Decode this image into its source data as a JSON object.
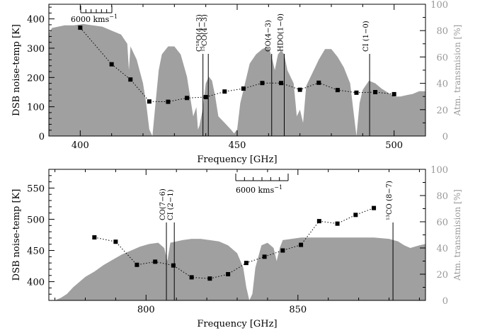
{
  "colors": {
    "transmission_fill": "#a0a0a0",
    "noise_series": "#000000",
    "right_axis": "#999999"
  },
  "chart_data": [
    {
      "type": "line",
      "xlabel": "Frequency [GHz]",
      "ylabel": "DSB noise-temp [K]",
      "y2label": "Atm. transmision [%]",
      "xlim": [
        390,
        510
      ],
      "ylim": [
        0,
        450
      ],
      "y2lim": [
        0,
        100
      ],
      "xticks": [
        "400",
        "450",
        "500"
      ],
      "yticks": [
        "0",
        "100",
        "200",
        "300",
        "400"
      ],
      "y2ticks": [
        "0",
        "20",
        "40",
        "60",
        "80",
        "100"
      ],
      "scale_bar_label": "6000 kms",
      "scale_bar_exponent": "−1",
      "series": [
        {
          "style": "dotted-line-square-markers",
          "x": [
            400,
            410,
            416,
            422,
            428,
            434,
            440,
            446,
            452,
            458,
            464,
            470,
            476,
            482,
            488,
            494,
            500
          ],
          "y": [
            370,
            245,
            193,
            118,
            117,
            130,
            133,
            152,
            162,
            181,
            181,
            158,
            182,
            157,
            148,
            150,
            143
          ]
        }
      ],
      "transmission": {
        "x": [
          390,
          391,
          393,
          395,
          398,
          401,
          404,
          407,
          410,
          413,
          415,
          415.5,
          416,
          418,
          420,
          421,
          422,
          423,
          424,
          425,
          426,
          428,
          430,
          432,
          434,
          436,
          437,
          437.5,
          438,
          439,
          440,
          441,
          442,
          443,
          444,
          446,
          448,
          449,
          450,
          451,
          452,
          454,
          456,
          458,
          460,
          461,
          462,
          463,
          464,
          465,
          466,
          468,
          469,
          470,
          471,
          472,
          474,
          476,
          478,
          480,
          482,
          484,
          486,
          487,
          488,
          489,
          490,
          492,
          494,
          496,
          498,
          500,
          502,
          504,
          506,
          508,
          510
        ],
        "y": [
          78,
          82,
          83,
          84,
          84,
          85,
          84,
          83,
          80,
          77,
          70,
          50,
          68,
          58,
          40,
          25,
          5,
          0,
          25,
          50,
          62,
          68,
          68,
          62,
          45,
          15,
          22,
          5,
          8,
          20,
          40,
          45,
          42,
          30,
          15,
          10,
          5,
          2,
          5,
          25,
          35,
          55,
          62,
          66,
          68,
          60,
          50,
          62,
          65,
          62,
          50,
          40,
          15,
          20,
          10,
          38,
          48,
          58,
          66,
          66,
          60,
          52,
          40,
          20,
          0,
          25,
          35,
          42,
          40,
          36,
          33,
          30,
          30,
          31,
          32,
          34,
          34
        ]
      },
      "lines": [
        {
          "freq": 439.1,
          "label": "C¹⁸O(4−3)"
        },
        {
          "freq": 440.8,
          "label": "¹³CO(4−3)"
        },
        {
          "freq": 461.0,
          "label": "CO(4−3)"
        },
        {
          "freq": 465.0,
          "label": "HDO(1−0)"
        },
        {
          "freq": 492.2,
          "label": "CI (1−0)"
        }
      ]
    },
    {
      "type": "line",
      "xlabel": "Frequency [GHz]",
      "ylabel": "DSB noise-temp [K]",
      "y2label": "Atm. transmision [%]",
      "xlim": [
        768,
        892
      ],
      "ylim": [
        370,
        580
      ],
      "y2lim": [
        0,
        100
      ],
      "xticks": [
        "800",
        "850"
      ],
      "yticks": [
        "400",
        "450",
        "500",
        "550"
      ],
      "y2ticks": [
        "0",
        "20",
        "40",
        "60",
        "80",
        "100"
      ],
      "scale_bar_label": "6000 kms",
      "scale_bar_exponent": "−1",
      "series": [
        {
          "style": "dotted-line-square-markers",
          "x": [
            783,
            790,
            797,
            803,
            809,
            815,
            821,
            827,
            833,
            839,
            845,
            851,
            857,
            863,
            869,
            875
          ],
          "y": [
            471,
            464,
            427,
            432,
            426,
            407,
            405,
            412,
            430,
            440,
            450,
            459,
            497,
            493,
            507,
            518
          ]
        }
      ],
      "transmission": {
        "x": [
          768,
          770,
          772,
          774,
          776,
          778,
          780,
          783,
          786,
          789,
          792,
          795,
          798,
          801,
          804,
          806,
          807,
          808,
          810,
          812,
          815,
          818,
          821,
          824,
          827,
          830,
          832,
          833,
          834,
          835,
          836,
          838,
          840,
          842,
          843,
          844,
          845,
          848,
          851,
          855,
          860,
          865,
          870,
          875,
          880,
          883,
          885,
          887,
          890,
          892
        ],
        "y": [
          0,
          0,
          2,
          5,
          10,
          14,
          18,
          22,
          27,
          31,
          35,
          38,
          41,
          43,
          44,
          40,
          30,
          44,
          45,
          46,
          47,
          47,
          46,
          45,
          42,
          36,
          25,
          10,
          0,
          5,
          25,
          42,
          44,
          40,
          30,
          40,
          46,
          47,
          48,
          48,
          48,
          48,
          48,
          48,
          47,
          45,
          42,
          40,
          42,
          43
        ]
      },
      "lines": [
        {
          "freq": 806.7,
          "label": "CO(7−6)"
        },
        {
          "freq": 809.3,
          "label": "CI (2−1)"
        },
        {
          "freq": 881.3,
          "label": "¹³CO (8−7)"
        }
      ]
    }
  ]
}
